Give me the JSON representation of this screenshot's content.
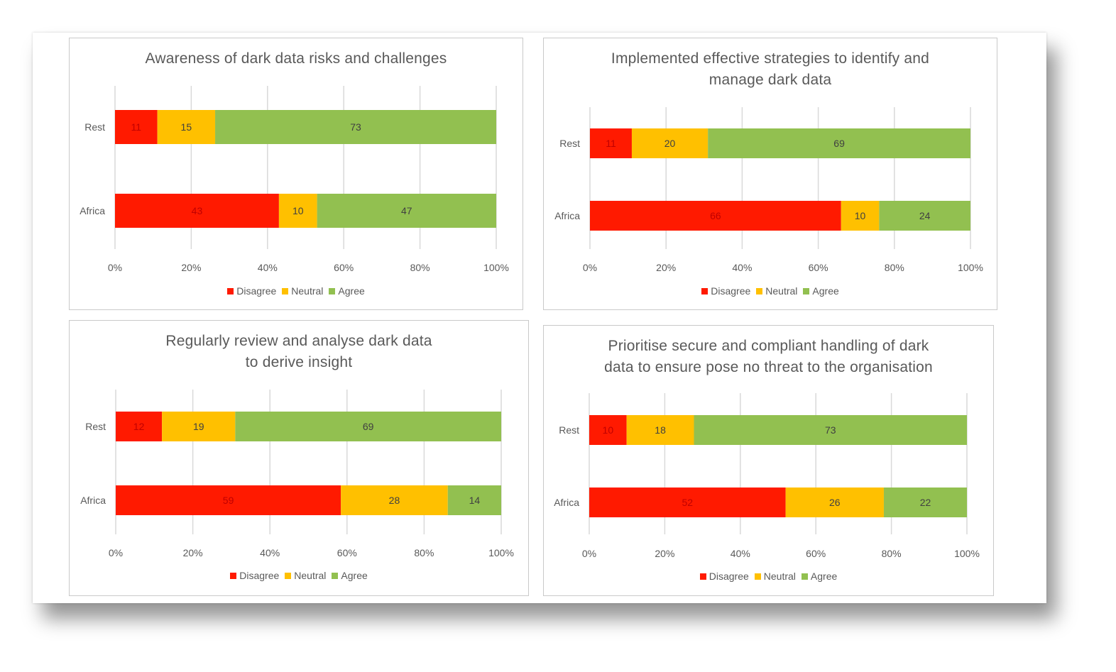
{
  "colors": {
    "Disagree": "#ff1a00",
    "Neutral": "#ffc000",
    "Agree": "#92c050",
    "grid": "#d9d9d9",
    "text": "#595959"
  },
  "chart_data": [
    {
      "type": "bar",
      "orientation": "horizontal",
      "stacked": "percent",
      "title": "Awareness of dark data risks and challenges",
      "categories": [
        "Rest",
        "Africa"
      ],
      "series": [
        {
          "name": "Disagree",
          "values": [
            11,
            43
          ]
        },
        {
          "name": "Neutral",
          "values": [
            15,
            10
          ]
        },
        {
          "name": "Agree",
          "values": [
            73,
            47
          ]
        }
      ],
      "xticks": [
        "0%",
        "20%",
        "40%",
        "60%",
        "80%",
        "100%"
      ],
      "xlim": [
        0,
        100
      ],
      "legend": [
        "Disagree",
        "Neutral",
        "Agree"
      ],
      "legend_position": "bottom"
    },
    {
      "type": "bar",
      "orientation": "horizontal",
      "stacked": "percent",
      "title": "Implemented effective strategies to identify and manage dark data",
      "categories": [
        "Rest",
        "Africa"
      ],
      "series": [
        {
          "name": "Disagree",
          "values": [
            11,
            66
          ]
        },
        {
          "name": "Neutral",
          "values": [
            20,
            10
          ]
        },
        {
          "name": "Agree",
          "values": [
            69,
            24
          ]
        }
      ],
      "xticks": [
        "0%",
        "20%",
        "40%",
        "60%",
        "80%",
        "100%"
      ],
      "xlim": [
        0,
        100
      ],
      "legend": [
        "Disagree",
        "Neutral",
        "Agree"
      ],
      "legend_position": "bottom"
    },
    {
      "type": "bar",
      "orientation": "horizontal",
      "stacked": "percent",
      "title": "Regularly review and analyse dark data to derive insight",
      "categories": [
        "Rest",
        "Africa"
      ],
      "series": [
        {
          "name": "Disagree",
          "values": [
            12,
            59
          ]
        },
        {
          "name": "Neutral",
          "values": [
            19,
            28
          ]
        },
        {
          "name": "Agree",
          "values": [
            69,
            14
          ]
        }
      ],
      "xticks": [
        "0%",
        "20%",
        "40%",
        "60%",
        "80%",
        "100%"
      ],
      "xlim": [
        0,
        100
      ],
      "legend": [
        "Disagree",
        "Neutral",
        "Agree"
      ],
      "legend_position": "bottom"
    },
    {
      "type": "bar",
      "orientation": "horizontal",
      "stacked": "percent",
      "title": "Prioritise secure and compliant handling of dark data to ensure pose no threat to the organisation",
      "categories": [
        "Rest",
        "Africa"
      ],
      "series": [
        {
          "name": "Disagree",
          "values": [
            10,
            52
          ]
        },
        {
          "name": "Neutral",
          "values": [
            18,
            26
          ]
        },
        {
          "name": "Agree",
          "values": [
            73,
            22
          ]
        }
      ],
      "xticks": [
        "0%",
        "20%",
        "40%",
        "60%",
        "80%",
        "100%"
      ],
      "xlim": [
        0,
        100
      ],
      "legend": [
        "Disagree",
        "Neutral",
        "Agree"
      ],
      "legend_position": "bottom"
    }
  ]
}
